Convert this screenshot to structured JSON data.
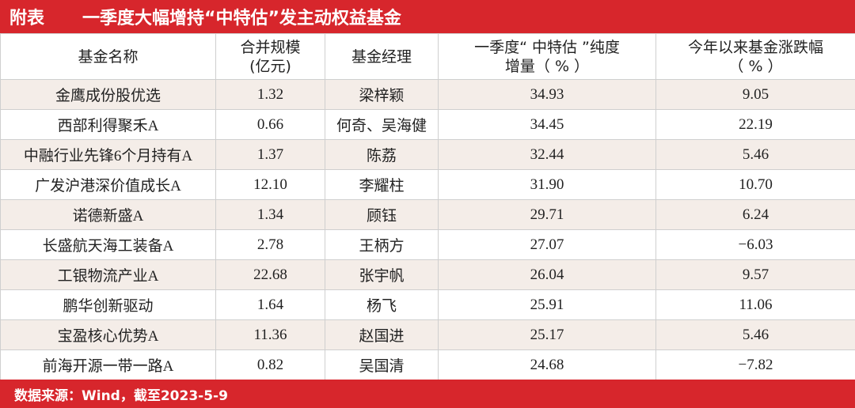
{
  "header": {
    "label": "附表",
    "title": "一季度大幅增持“中特估”发主动权益基金"
  },
  "table": {
    "columns": [
      [
        "基金名称"
      ],
      [
        "合并规模",
        "(亿元)"
      ],
      [
        "基金经理"
      ],
      [
        "一季度“ 中特估 ”纯度",
        "增量（ %  ）"
      ],
      [
        "今年以来基金涨跌幅",
        "（ % ）"
      ]
    ],
    "rows": [
      [
        "金鹰成份股优选",
        "1.32",
        "梁梓颖",
        "34.93",
        "9.05"
      ],
      [
        "西部利得聚禾A",
        "0.66",
        "何奇、吴海健",
        "34.45",
        "22.19"
      ],
      [
        "中融行业先锋6个月持有A",
        "1.37",
        "陈荔",
        "32.44",
        "5.46"
      ],
      [
        "广发沪港深价值成长A",
        "12.10",
        "李耀柱",
        "31.90",
        "10.70"
      ],
      [
        "诺德新盛A",
        "1.34",
        "顾钰",
        "29.71",
        "6.24"
      ],
      [
        "长盛航天海工装备A",
        "2.78",
        "王柄方",
        "27.07",
        "−6.03"
      ],
      [
        "工银物流产业A",
        "22.68",
        "张宇帆",
        "26.04",
        "9.57"
      ],
      [
        "鹏华创新驱动",
        "1.64",
        "杨飞",
        "25.91",
        "11.06"
      ],
      [
        "宝盈核心优势A",
        "11.36",
        "赵国进",
        "25.17",
        "5.46"
      ],
      [
        "前海开源一带一路A",
        "0.82",
        "吴国清",
        "24.68",
        "−7.82"
      ]
    ]
  },
  "footer": {
    "source": "数据来源：Wind，截至2023-5-9"
  }
}
